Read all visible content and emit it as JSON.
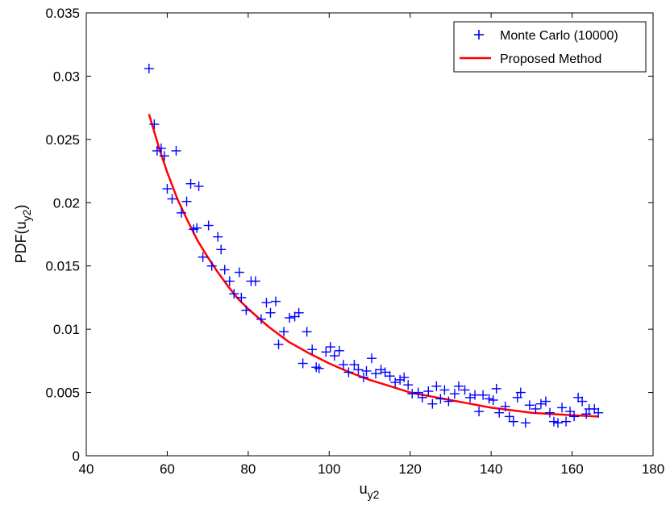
{
  "chart_data": {
    "type": "scatter",
    "xlabel": {
      "base": "u",
      "sub": "y2"
    },
    "ylabel": {
      "prefix": "PDF(u",
      "sub": "y2",
      "suffix": ")"
    },
    "xlim": [
      40,
      180
    ],
    "ylim": [
      0,
      0.035
    ],
    "xticks": [
      40,
      60,
      80,
      100,
      120,
      140,
      160,
      180
    ],
    "yticks": [
      0,
      0.005,
      0.01,
      0.015,
      0.02,
      0.025,
      0.03,
      0.035
    ],
    "ytick_labels": [
      "0",
      "0.005",
      "0.01",
      "0.015",
      "0.02",
      "0.025",
      "0.03",
      "0.035"
    ],
    "grid": false,
    "legend_position": "top-right",
    "series": [
      {
        "name": "Monte Carlo (10000)",
        "kind": "scatter",
        "marker": "plus",
        "color": "#0000ff",
        "points": [
          [
            55.5,
            0.0306
          ],
          [
            56.8,
            0.0262
          ],
          [
            57.5,
            0.0241
          ],
          [
            58.5,
            0.0243
          ],
          [
            59.3,
            0.0237
          ],
          [
            60.0,
            0.0211
          ],
          [
            61.2,
            0.0203
          ],
          [
            62.2,
            0.0241
          ],
          [
            63.5,
            0.0192
          ],
          [
            64.8,
            0.0201
          ],
          [
            65.8,
            0.0215
          ],
          [
            66.5,
            0.0179
          ],
          [
            67.3,
            0.018
          ],
          [
            67.8,
            0.0213
          ],
          [
            68.8,
            0.0157
          ],
          [
            70.2,
            0.0182
          ],
          [
            71.0,
            0.015
          ],
          [
            72.5,
            0.0173
          ],
          [
            73.3,
            0.0163
          ],
          [
            74.2,
            0.0147
          ],
          [
            75.4,
            0.0138
          ],
          [
            76.5,
            0.0128
          ],
          [
            77.8,
            0.0145
          ],
          [
            78.3,
            0.0125
          ],
          [
            79.5,
            0.0115
          ],
          [
            80.7,
            0.0138
          ],
          [
            81.8,
            0.0138
          ],
          [
            83.2,
            0.0108
          ],
          [
            84.5,
            0.0121
          ],
          [
            85.5,
            0.0113
          ],
          [
            86.8,
            0.0122
          ],
          [
            87.5,
            0.0088
          ],
          [
            88.8,
            0.0098
          ],
          [
            90.2,
            0.0109
          ],
          [
            91.5,
            0.011
          ],
          [
            92.5,
            0.0113
          ],
          [
            93.5,
            0.0073
          ],
          [
            94.5,
            0.0098
          ],
          [
            95.8,
            0.0084
          ],
          [
            96.8,
            0.007
          ],
          [
            97.5,
            0.0069
          ],
          [
            99.2,
            0.0082
          ],
          [
            100.3,
            0.0086
          ],
          [
            101.3,
            0.0079
          ],
          [
            102.5,
            0.0083
          ],
          [
            103.5,
            0.0072
          ],
          [
            104.8,
            0.0066
          ],
          [
            106.2,
            0.0072
          ],
          [
            107.2,
            0.0068
          ],
          [
            108.5,
            0.0062
          ],
          [
            109.2,
            0.0067
          ],
          [
            110.5,
            0.0077
          ],
          [
            111.5,
            0.0065
          ],
          [
            112.8,
            0.0068
          ],
          [
            113.8,
            0.0066
          ],
          [
            115.0,
            0.0063
          ],
          [
            116.3,
            0.0058
          ],
          [
            117.5,
            0.006
          ],
          [
            118.5,
            0.0062
          ],
          [
            119.5,
            0.0056
          ],
          [
            120.5,
            0.0049
          ],
          [
            122.0,
            0.005
          ],
          [
            123.0,
            0.0046
          ],
          [
            124.5,
            0.0051
          ],
          [
            125.5,
            0.0041
          ],
          [
            126.5,
            0.0055
          ],
          [
            127.5,
            0.0045
          ],
          [
            128.5,
            0.0052
          ],
          [
            129.5,
            0.0043
          ],
          [
            131.0,
            0.0049
          ],
          [
            132.0,
            0.0055
          ],
          [
            133.5,
            0.0052
          ],
          [
            134.8,
            0.0046
          ],
          [
            136.0,
            0.0048
          ],
          [
            137.0,
            0.0035
          ],
          [
            138.0,
            0.0048
          ],
          [
            139.5,
            0.0045
          ],
          [
            140.5,
            0.0044
          ],
          [
            141.3,
            0.0053
          ],
          [
            142.0,
            0.0034
          ],
          [
            143.5,
            0.0039
          ],
          [
            144.5,
            0.0031
          ],
          [
            145.5,
            0.0027
          ],
          [
            146.5,
            0.0046
          ],
          [
            147.3,
            0.005
          ],
          [
            148.5,
            0.0026
          ],
          [
            149.5,
            0.004
          ],
          [
            151.0,
            0.0037
          ],
          [
            152.3,
            0.0041
          ],
          [
            153.5,
            0.0043
          ],
          [
            154.5,
            0.0034
          ],
          [
            155.5,
            0.0027
          ],
          [
            156.5,
            0.0026
          ],
          [
            157.5,
            0.0038
          ],
          [
            158.5,
            0.0027
          ],
          [
            159.5,
            0.0035
          ],
          [
            160.5,
            0.0031
          ],
          [
            161.5,
            0.0046
          ],
          [
            162.5,
            0.0043
          ],
          [
            163.5,
            0.0033
          ],
          [
            164.2,
            0.0037
          ],
          [
            165.5,
            0.0037
          ],
          [
            166.5,
            0.0034
          ]
        ]
      },
      {
        "name": "Proposed Method",
        "kind": "line",
        "color": "#ff0000",
        "points": [
          [
            55.5,
            0.027
          ],
          [
            58,
            0.0243
          ],
          [
            60,
            0.0224
          ],
          [
            62.5,
            0.0203
          ],
          [
            65,
            0.0186
          ],
          [
            67.5,
            0.017
          ],
          [
            70,
            0.0157
          ],
          [
            72.5,
            0.0145
          ],
          [
            75,
            0.0134
          ],
          [
            77.5,
            0.0124
          ],
          [
            80,
            0.0116
          ],
          [
            85,
            0.0102
          ],
          [
            90,
            0.009
          ],
          [
            95,
            0.0081
          ],
          [
            100,
            0.0073
          ],
          [
            105,
            0.0066
          ],
          [
            110,
            0.006
          ],
          [
            115,
            0.0055
          ],
          [
            120,
            0.005
          ],
          [
            125,
            0.0047
          ],
          [
            130,
            0.0044
          ],
          [
            135,
            0.0041
          ],
          [
            140,
            0.0038
          ],
          [
            145,
            0.0036
          ],
          [
            150,
            0.0034
          ],
          [
            155,
            0.0033
          ],
          [
            160,
            0.0032
          ],
          [
            166.5,
            0.0031
          ]
        ]
      }
    ]
  }
}
